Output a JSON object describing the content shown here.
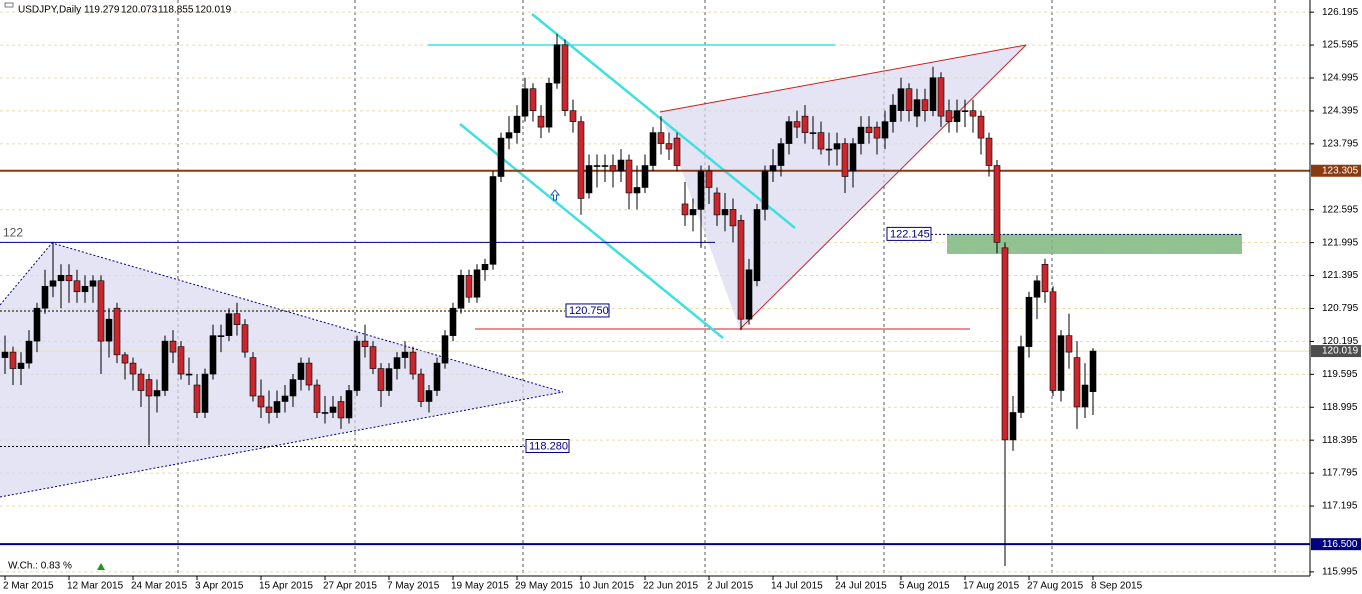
{
  "chart_data": {
    "type": "candlestick",
    "header": "USDJPY,Daily",
    "header_values": [
      119.279,
      120.073,
      118.855,
      120.019
    ],
    "note": "W.Ch.: 0.83 %",
    "up_color": "#000000",
    "down_color": "#c8282d",
    "grid": true,
    "ylim": [
      115.92,
      126.38
    ],
    "yticks": [
      126.195,
      125.595,
      124.995,
      124.395,
      123.795,
      122.595,
      121.995,
      121.395,
      120.795,
      120.195,
      119.595,
      118.995,
      118.395,
      117.795,
      117.195,
      115.995
    ],
    "levels": [
      {
        "value": 123.305,
        "color": "#8b3a0f",
        "kind": "axis"
      },
      {
        "value": 116.5,
        "label": "116.500",
        "color": "#000080",
        "kind": "axis"
      },
      {
        "value": 120.019,
        "color": "#4d4d4d",
        "kind": "axis"
      },
      {
        "value": 122,
        "color": "#000080",
        "kind": "left"
      },
      {
        "value": 122.145,
        "color": "#000080",
        "kind": "box"
      },
      {
        "value": 120.75,
        "label": "120.750",
        "color": "#000080",
        "kind": "box"
      },
      {
        "value": 118.28,
        "label": "118.280",
        "color": "#000080",
        "kind": "box"
      }
    ],
    "categories": [
      "2 Mar 2015",
      null,
      null,
      null,
      null,
      null,
      null,
      null,
      "12 Mar 2015",
      null,
      null,
      null,
      null,
      null,
      null,
      null,
      "24 Mar 2015",
      null,
      null,
      null,
      null,
      null,
      null,
      null,
      "3 Apr 2015",
      null,
      null,
      null,
      null,
      null,
      null,
      null,
      "15 Apr 2015",
      null,
      null,
      null,
      null,
      null,
      null,
      null,
      "27 Apr 2015",
      null,
      null,
      null,
      null,
      null,
      null,
      null,
      "7 May 2015",
      null,
      null,
      null,
      null,
      null,
      null,
      null,
      "19 May 2015",
      null,
      null,
      null,
      null,
      null,
      null,
      null,
      "29 May 2015",
      null,
      null,
      null,
      null,
      null,
      null,
      null,
      "10 Jun 2015",
      null,
      null,
      null,
      null,
      null,
      null,
      null,
      "22 Jun 2015",
      null,
      null,
      null,
      null,
      null,
      null,
      null,
      "2 Jul 2015",
      null,
      null,
      null,
      null,
      null,
      null,
      null,
      "14 Jul 2015",
      null,
      null,
      null,
      null,
      null,
      null,
      null,
      "24 Jul 2015",
      null,
      null,
      null,
      null,
      null,
      null,
      null,
      "5 Aug 2015",
      null,
      null,
      null,
      null,
      null,
      null,
      null,
      "17 Aug 2015",
      null,
      null,
      null,
      null,
      null,
      null,
      null,
      "27 Aug 2015",
      null,
      null,
      null,
      null,
      null,
      null,
      null,
      "8 Sep 2015"
    ],
    "open": [
      119.9,
      120.0,
      119.7,
      119.8,
      120.2,
      120.8,
      121.2,
      121.3,
      121.4,
      121.3,
      121.1,
      121.2,
      121.3,
      120.2,
      120.8,
      119.95,
      119.8,
      119.6,
      119.5,
      119.2,
      119.3,
      120.2,
      120.1,
      119.6,
      119.4,
      118.9,
      119.6,
      120.3,
      120.3,
      120.7,
      120.5,
      119.9,
      119.2,
      119.0,
      118.9,
      119.1,
      119.2,
      119.5,
      119.8,
      119.4,
      118.9,
      118.9,
      119.1,
      118.8,
      119.3,
      120.2,
      120.1,
      119.7,
      119.3,
      119.7,
      119.9,
      120.0,
      119.6,
      119.1,
      119.3,
      119.8,
      120.3,
      120.8,
      121.4,
      121.0,
      121.5,
      121.6,
      123.2,
      123.9,
      124.0,
      124.3,
      124.8,
      124.3,
      124.1,
      124.9,
      125.6,
      124.4,
      124.2,
      122.9,
      123.4,
      123.4,
      123.4,
      123.3,
      123.5,
      122.9,
      123.0,
      123.4,
      124.0,
      123.8,
      123.9,
      122.7,
      122.5,
      122.6,
      123.3,
      122.9,
      122.5,
      122.6,
      122.4,
      120.6,
      121.3,
      122.6,
      123.3,
      123.4,
      123.8,
      124.2,
      124.3,
      124.0,
      124.0,
      123.7,
      123.7,
      123.8,
      123.3,
      123.8,
      124.1,
      124.1,
      123.9,
      124.2,
      124.4,
      124.8,
      124.3,
      124.6,
      124.4,
      125.0,
      124.4,
      124.2,
      124.4,
      124.4,
      124.3,
      123.9,
      123.4,
      121.9,
      118.4,
      118.9,
      120.1,
      121.0,
      121.6,
      121.1,
      119.3,
      120.3,
      119.9,
      119.0,
      119.279
    ],
    "high": [
      120.3,
      120.1,
      120.0,
      120.4,
      120.9,
      121.5,
      122.0,
      121.6,
      121.6,
      121.5,
      121.4,
      121.4,
      121.4,
      120.8,
      120.9,
      120.0,
      119.9,
      119.7,
      119.6,
      119.5,
      120.3,
      120.4,
      120.2,
      119.9,
      119.6,
      119.7,
      120.5,
      120.5,
      120.8,
      120.9,
      120.6,
      120.0,
      119.5,
      119.3,
      119.3,
      119.4,
      119.6,
      119.9,
      119.9,
      119.5,
      119.2,
      119.2,
      119.2,
      119.4,
      120.3,
      120.5,
      120.2,
      119.8,
      119.8,
      120.0,
      120.2,
      120.1,
      119.7,
      119.4,
      119.9,
      120.4,
      120.9,
      121.5,
      121.5,
      121.6,
      121.7,
      123.3,
      124.0,
      124.3,
      124.5,
      125.0,
      124.9,
      124.5,
      125.0,
      125.8,
      125.7,
      124.6,
      124.3,
      123.6,
      123.6,
      123.6,
      123.6,
      123.7,
      123.6,
      123.4,
      123.6,
      124.1,
      124.3,
      124.0,
      124.0,
      123.1,
      122.8,
      123.4,
      123.4,
      123.0,
      122.9,
      122.8,
      122.5,
      121.7,
      122.7,
      123.4,
      123.7,
      123.9,
      124.3,
      124.4,
      124.5,
      124.3,
      124.2,
      124.0,
      124.0,
      123.9,
      123.9,
      124.3,
      124.3,
      124.2,
      124.4,
      124.7,
      125.0,
      124.9,
      124.8,
      124.8,
      125.2,
      125.1,
      124.6,
      124.6,
      124.6,
      124.6,
      124.4,
      124.0,
      123.5,
      122.0,
      119.2,
      120.3,
      121.1,
      121.4,
      121.7,
      121.2,
      120.4,
      120.7,
      120.2,
      119.8,
      120.073
    ],
    "low": [
      119.6,
      119.4,
      119.4,
      119.7,
      120.0,
      120.7,
      121.0,
      120.8,
      120.9,
      120.9,
      120.9,
      120.9,
      119.6,
      119.9,
      119.8,
      119.5,
      119.3,
      119.0,
      118.3,
      118.9,
      119.2,
      119.8,
      119.5,
      119.4,
      118.8,
      118.8,
      119.5,
      120.0,
      120.2,
      120.3,
      119.9,
      119.1,
      118.8,
      118.7,
      118.8,
      118.9,
      119.0,
      119.3,
      119.3,
      118.8,
      118.7,
      118.8,
      118.6,
      118.7,
      119.2,
      119.9,
      119.6,
      119.0,
      119.2,
      119.5,
      119.7,
      119.5,
      119.0,
      118.9,
      119.2,
      119.7,
      120.2,
      120.7,
      120.9,
      120.9,
      121.3,
      121.5,
      123.1,
      123.7,
      123.8,
      124.2,
      124.2,
      123.9,
      124.0,
      124.8,
      124.3,
      124.0,
      122.5,
      122.8,
      123.0,
      123.1,
      123.0,
      123.1,
      122.6,
      122.6,
      122.9,
      123.3,
      123.6,
      123.5,
      123.3,
      122.3,
      122.2,
      121.9,
      122.7,
      122.3,
      122.2,
      122.0,
      120.4,
      120.5,
      121.2,
      122.4,
      123.1,
      123.2,
      123.6,
      123.9,
      123.8,
      123.7,
      123.6,
      123.4,
      123.4,
      122.9,
      123.0,
      123.6,
      123.8,
      123.6,
      123.7,
      124.0,
      124.2,
      124.2,
      124.1,
      124.2,
      124.3,
      124.1,
      124.0,
      124.0,
      124.1,
      124.0,
      123.6,
      123.2,
      121.8,
      116.1,
      118.2,
      118.8,
      119.9,
      120.6,
      120.9,
      119.2,
      119.1,
      119.7,
      118.6,
      118.8,
      118.855
    ],
    "close": [
      120.0,
      119.7,
      119.8,
      120.2,
      120.8,
      121.2,
      121.3,
      121.4,
      121.3,
      121.1,
      121.2,
      121.3,
      120.2,
      120.6,
      119.95,
      119.8,
      119.6,
      119.3,
      119.2,
      119.3,
      120.2,
      120.0,
      119.6,
      119.6,
      118.9,
      119.6,
      120.3,
      120.3,
      120.7,
      120.5,
      120.0,
      119.2,
      119.0,
      118.9,
      119.1,
      119.2,
      119.5,
      119.8,
      119.4,
      118.9,
      118.9,
      119.0,
      118.8,
      119.3,
      120.2,
      120.1,
      119.7,
      119.3,
      119.7,
      119.9,
      120.0,
      119.6,
      119.1,
      119.3,
      119.8,
      120.3,
      120.8,
      121.4,
      121.0,
      121.5,
      121.6,
      123.2,
      123.9,
      124.0,
      124.3,
      124.8,
      124.4,
      124.1,
      124.9,
      125.6,
      124.4,
      124.2,
      122.8,
      123.4,
      123.4,
      123.4,
      123.3,
      123.5,
      122.9,
      123.0,
      123.4,
      124.0,
      123.8,
      123.7,
      123.4,
      122.5,
      122.6,
      123.3,
      123.0,
      122.5,
      122.6,
      122.3,
      120.6,
      121.5,
      122.6,
      123.3,
      123.4,
      123.8,
      124.2,
      124.1,
      124.0,
      124.0,
      123.7,
      123.7,
      123.8,
      123.2,
      123.8,
      124.1,
      124.0,
      123.9,
      124.2,
      124.5,
      124.8,
      124.4,
      124.6,
      124.4,
      125.0,
      124.3,
      124.2,
      124.4,
      124.4,
      124.3,
      123.9,
      123.4,
      122.0,
      118.4,
      118.9,
      120.1,
      121.0,
      121.3,
      121.1,
      119.3,
      120.3,
      120.0,
      119.0,
      119.4,
      120.019
    ]
  }
}
